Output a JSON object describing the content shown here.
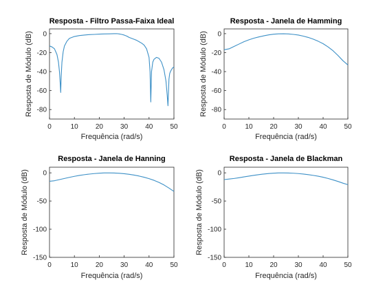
{
  "figure": {
    "background": "#ffffff",
    "line_color": "#3b8fc6"
  },
  "chart_data": [
    {
      "type": "line",
      "title": "Resposta - Filtro Passa-Faixa Ideal",
      "xlabel": "Frequência (rad/s)",
      "ylabel": "Resposta de Módulo (dB)",
      "xlim": [
        0,
        50
      ],
      "ylim": [
        -90,
        5
      ],
      "xticks": [
        0,
        10,
        20,
        30,
        40,
        50
      ],
      "yticks": [
        0,
        -20,
        -40,
        -60,
        -80
      ],
      "grid": false,
      "series": [
        {
          "x": [
            0,
            1,
            2,
            3,
            3.6,
            4,
            4.3,
            4.5,
            4.7,
            5,
            5.5,
            6,
            7,
            8,
            10,
            12,
            14,
            16,
            18,
            20,
            22,
            24,
            26,
            27,
            28,
            29,
            30,
            31,
            32,
            33,
            34,
            35,
            36,
            37,
            38,
            39,
            40,
            40.4,
            40.7,
            41,
            41.5,
            42,
            43,
            44,
            45,
            46,
            46.8,
            47.3,
            47.6,
            47.8,
            48,
            48.3,
            48.6,
            49,
            49.5,
            50
          ],
          "y": [
            -13,
            -14,
            -16,
            -22,
            -30,
            -40,
            -52,
            -62,
            -45,
            -30,
            -19,
            -13,
            -8,
            -5,
            -3,
            -2,
            -1.5,
            -1,
            -0.8,
            -0.5,
            -0.3,
            -0.2,
            0,
            0,
            -0.3,
            -0.8,
            -1.5,
            -2.5,
            -4,
            -5,
            -6,
            -7,
            -8.5,
            -10,
            -12,
            -16,
            -25,
            -40,
            -72,
            -40,
            -30,
            -27,
            -25,
            -26,
            -30,
            -38,
            -50,
            -65,
            -76,
            -62,
            -48,
            -42,
            -40,
            -38,
            -36,
            -35
          ]
        }
      ]
    },
    {
      "type": "line",
      "title": "Resposta - Janela de Hamming",
      "xlabel": "Frequência (rad/s)",
      "ylabel": "Resposta de Módulo (dB)",
      "xlim": [
        0,
        50
      ],
      "ylim": [
        -90,
        5
      ],
      "xticks": [
        0,
        10,
        20,
        30,
        40,
        50
      ],
      "yticks": [
        0,
        -20,
        -40,
        -60,
        -80
      ],
      "grid": false,
      "series": [
        {
          "x": [
            0,
            2,
            4,
            6,
            8,
            10,
            12,
            14,
            16,
            18,
            20,
            22,
            24,
            26,
            28,
            30,
            32,
            34,
            36,
            38,
            40,
            42,
            44,
            46,
            48,
            50
          ],
          "y": [
            -17,
            -16,
            -13.5,
            -11,
            -8.5,
            -6.5,
            -4.8,
            -3.5,
            -2.3,
            -1.3,
            -0.6,
            -0.2,
            -0.1,
            -0.3,
            -0.8,
            -1.5,
            -2.6,
            -4,
            -5.8,
            -8,
            -10.6,
            -14,
            -18,
            -23,
            -28.5,
            -33
          ]
        }
      ]
    },
    {
      "type": "line",
      "title": "Resposta - Janela de Hanning",
      "xlabel": "Frequência (rad/s)",
      "ylabel": "Resposta de Módulo (dB)",
      "xlim": [
        0,
        50
      ],
      "ylim": [
        -150,
        10
      ],
      "xticks": [
        0,
        10,
        20,
        30,
        40,
        50
      ],
      "yticks": [
        0,
        -50,
        -100,
        -150
      ],
      "grid": false,
      "series": [
        {
          "x": [
            0,
            2,
            4,
            6,
            8,
            10,
            12,
            14,
            16,
            18,
            20,
            22,
            24,
            26,
            28,
            30,
            32,
            34,
            36,
            38,
            40,
            42,
            44,
            46,
            48,
            50
          ],
          "y": [
            -15,
            -14,
            -12,
            -10,
            -8,
            -6.2,
            -4.6,
            -3.3,
            -2.2,
            -1.3,
            -0.6,
            -0.2,
            -0.1,
            -0.3,
            -0.8,
            -1.5,
            -2.6,
            -4,
            -5.7,
            -7.8,
            -10.3,
            -13.3,
            -17,
            -21.5,
            -27,
            -33
          ]
        }
      ]
    },
    {
      "type": "line",
      "title": "Resposta - Janela de Blackman",
      "xlabel": "Frequência (rad/s)",
      "ylabel": "Resposta de Módulo (dB)",
      "xlim": [
        0,
        50
      ],
      "ylim": [
        -150,
        10
      ],
      "xticks": [
        0,
        10,
        20,
        30,
        40,
        50
      ],
      "yticks": [
        0,
        -50,
        -100,
        -150
      ],
      "grid": false,
      "series": [
        {
          "x": [
            0,
            2,
            4,
            6,
            8,
            10,
            12,
            14,
            16,
            18,
            20,
            22,
            24,
            26,
            28,
            30,
            32,
            34,
            36,
            38,
            40,
            42,
            44,
            46,
            48,
            50
          ],
          "y": [
            -12,
            -11,
            -10,
            -8.7,
            -7.2,
            -5.8,
            -4.4,
            -3.2,
            -2.1,
            -1.2,
            -0.6,
            -0.2,
            -0.1,
            -0.3,
            -0.7,
            -1.3,
            -2.1,
            -3.2,
            -4.5,
            -6,
            -7.8,
            -10,
            -12.5,
            -15.3,
            -18.3,
            -21
          ]
        }
      ]
    }
  ]
}
